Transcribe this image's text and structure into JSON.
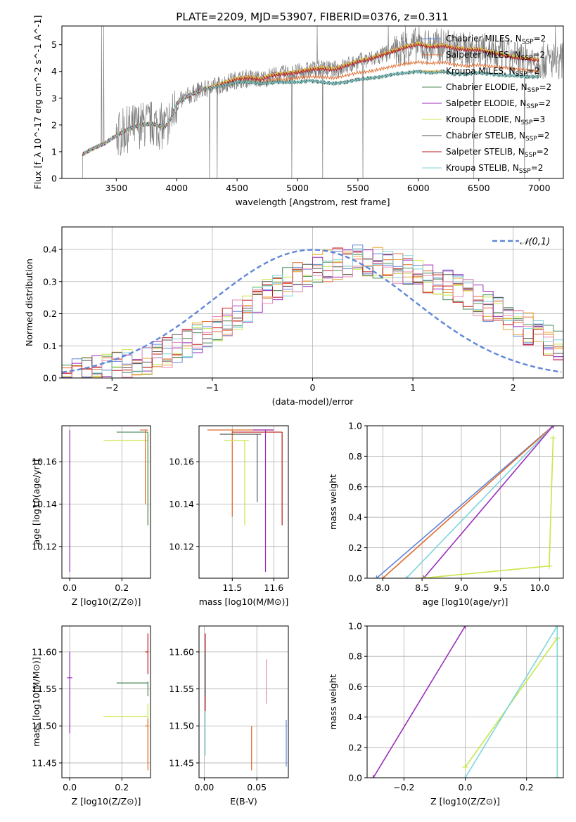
{
  "figure": {
    "title": "PLATE=2209, MJD=53907, FIBERID=0376, z=0.311",
    "series_colors": {
      "Chabrier MILES": "#5f86d8",
      "Salpeter MILES": "#e06a2b",
      "Kroupa MILES": "#e8a830",
      "Chabrier ELODIE": "#4a8a58",
      "Salpeter ELODIE": "#9a2eb8",
      "Kroupa ELODIE": "#c8e64a",
      "Chabrier STELIB": "#555555",
      "Salpeter STELIB": "#c01818",
      "Kroupa STELIB": "#7fd4dc"
    }
  },
  "chart_data": [
    {
      "type": "line",
      "id": "spectrum",
      "title": "PLATE=2209, MJD=53907, FIBERID=0376, z=0.311",
      "xlabel": "wavelength [Angstrom, rest frame]",
      "ylabel": "Flux [f_λ 10^-17 erg cm^-2 s^-1 A^-1]",
      "xlim": [
        3050,
        7200
      ],
      "ylim": [
        0,
        5.7
      ],
      "xticks": [
        3500,
        4000,
        4500,
        5000,
        5500,
        6000,
        6500,
        7000
      ],
      "yticks": [
        0,
        1,
        2,
        3,
        4,
        5
      ],
      "legend_position": "top-right",
      "data_color": "#7f7f7f",
      "model_x": [
        3220,
        3300,
        3400,
        3500,
        3600,
        3700,
        3800,
        3900,
        3960,
        4000,
        4100,
        4200,
        4300,
        4400,
        4500,
        4600,
        4700,
        4800,
        4900,
        5000,
        5100,
        5200,
        5300,
        5400,
        5500,
        5600,
        5700,
        5800,
        5900,
        6000,
        6100,
        6200,
        6300,
        6400,
        6500,
        6600,
        6700,
        6800,
        6900,
        7000
      ],
      "series": [
        {
          "name": "Chabrier MILES, N_SSP=2",
          "values": [
            0.9,
            1.1,
            1.3,
            1.6,
            1.85,
            2.0,
            2.05,
            1.9,
            2.3,
            2.8,
            3.1,
            3.3,
            3.4,
            3.55,
            3.7,
            3.75,
            3.7,
            3.85,
            3.9,
            3.95,
            4.05,
            4.1,
            4.05,
            4.2,
            4.35,
            4.45,
            4.6,
            4.75,
            4.9,
            5.0,
            4.9,
            4.95,
            4.85,
            4.8,
            4.8,
            4.7,
            4.6,
            4.5,
            4.45,
            4.4
          ]
        },
        {
          "name": "Salpeter MILES, N_SSP=2",
          "values": [
            0.9,
            1.1,
            1.3,
            1.6,
            1.85,
            2.0,
            2.05,
            1.9,
            2.3,
            2.8,
            3.1,
            3.3,
            3.4,
            3.5,
            3.6,
            3.65,
            3.6,
            3.7,
            3.7,
            3.75,
            3.8,
            3.8,
            3.75,
            3.85,
            3.95,
            4.0,
            4.1,
            4.2,
            4.3,
            4.35,
            4.3,
            4.35,
            4.25,
            4.2,
            4.25,
            4.2,
            4.15,
            4.1,
            4.05,
            4.0
          ]
        },
        {
          "name": "Kroupa MILES, N_SSP=2",
          "values": [
            0.9,
            1.1,
            1.3,
            1.6,
            1.85,
            2.0,
            2.05,
            1.9,
            2.3,
            2.8,
            3.1,
            3.3,
            3.45,
            3.6,
            3.75,
            3.8,
            3.75,
            3.9,
            3.95,
            4.0,
            4.1,
            4.15,
            4.1,
            4.25,
            4.4,
            4.5,
            4.65,
            4.8,
            4.95,
            5.05,
            4.95,
            5.0,
            4.9,
            4.85,
            4.85,
            4.75,
            4.65,
            4.55,
            4.5,
            4.45
          ]
        },
        {
          "name": "Chabrier ELODIE, N_SSP=2",
          "values": [
            0.9,
            1.1,
            1.3,
            1.6,
            1.85,
            2.0,
            2.05,
            1.9,
            2.3,
            2.8,
            3.1,
            3.3,
            3.4,
            3.5,
            3.6,
            3.6,
            3.55,
            3.6,
            3.6,
            3.6,
            3.65,
            3.6,
            3.55,
            3.6,
            3.7,
            3.75,
            3.8,
            3.9,
            3.95,
            4.0,
            3.95,
            4.0,
            3.9,
            3.9,
            3.95,
            3.9,
            3.85,
            3.85,
            3.8,
            3.8
          ]
        },
        {
          "name": "Salpeter ELODIE, N_SSP=2",
          "values": [
            0.9,
            1.1,
            1.3,
            1.6,
            1.85,
            2.0,
            2.05,
            1.9,
            2.3,
            2.8,
            3.1,
            3.3,
            3.45,
            3.6,
            3.75,
            3.8,
            3.75,
            3.9,
            3.95,
            4.0,
            4.1,
            4.15,
            4.1,
            4.25,
            4.4,
            4.5,
            4.65,
            4.8,
            4.95,
            5.05,
            4.95,
            5.0,
            4.9,
            4.85,
            4.85,
            4.75,
            4.65,
            4.55,
            4.5,
            4.45
          ]
        },
        {
          "name": "Kroupa ELODIE, N_SSP=3",
          "values": [
            0.9,
            1.1,
            1.3,
            1.6,
            1.85,
            2.0,
            2.05,
            1.9,
            2.3,
            2.8,
            3.1,
            3.3,
            3.45,
            3.6,
            3.75,
            3.8,
            3.75,
            3.9,
            3.95,
            4.0,
            4.1,
            4.15,
            4.1,
            4.25,
            4.4,
            4.5,
            4.65,
            4.8,
            4.95,
            5.05,
            4.95,
            5.0,
            4.9,
            4.85,
            4.85,
            4.75,
            4.65,
            4.55,
            4.5,
            4.45
          ]
        },
        {
          "name": "Chabrier STELIB, N_SSP=2",
          "values": [
            0.9,
            1.1,
            1.3,
            1.6,
            1.85,
            2.0,
            2.05,
            1.9,
            2.3,
            2.8,
            3.1,
            3.3,
            3.4,
            3.5,
            3.6,
            3.6,
            3.55,
            3.6,
            3.6,
            3.6,
            3.65,
            3.6,
            3.55,
            3.6,
            3.7,
            3.75,
            3.8,
            3.9,
            3.95,
            4.0,
            3.95,
            4.0,
            3.9,
            3.9,
            3.95,
            3.9,
            3.85,
            3.85,
            3.8,
            3.8
          ]
        },
        {
          "name": "Salpeter STELIB, N_SSP=2",
          "values": [
            0.9,
            1.1,
            1.3,
            1.6,
            1.85,
            2.0,
            2.05,
            1.9,
            2.3,
            2.8,
            3.1,
            3.3,
            3.4,
            3.55,
            3.7,
            3.75,
            3.7,
            3.85,
            3.9,
            3.95,
            4.05,
            4.1,
            4.05,
            4.2,
            4.35,
            4.45,
            4.6,
            4.75,
            4.9,
            5.0,
            4.9,
            4.95,
            4.85,
            4.8,
            4.8,
            4.7,
            4.6,
            4.5,
            4.45,
            4.4
          ]
        },
        {
          "name": "Kroupa STELIB, N_SSP=2",
          "values": [
            0.9,
            1.1,
            1.3,
            1.6,
            1.85,
            2.0,
            2.05,
            1.9,
            2.3,
            2.8,
            3.1,
            3.3,
            3.4,
            3.5,
            3.6,
            3.6,
            3.55,
            3.6,
            3.6,
            3.6,
            3.65,
            3.6,
            3.55,
            3.6,
            3.7,
            3.75,
            3.8,
            3.9,
            3.95,
            4.0,
            3.95,
            4.0,
            3.9,
            3.9,
            3.95,
            3.9,
            3.85,
            3.85,
            3.8,
            3.8
          ]
        }
      ]
    },
    {
      "type": "line",
      "id": "residuals",
      "xlabel": "(data-model)/error",
      "ylabel": "Normed distribution",
      "xlim": [
        -2.5,
        2.5
      ],
      "ylim": [
        0,
        0.47
      ],
      "xticks": [
        -2,
        -1,
        0,
        1,
        2
      ],
      "yticks": [
        0.0,
        0.1,
        0.2,
        0.3,
        0.4
      ],
      "legend_position": "top-right",
      "reference_curve": {
        "name": "𝒩(0,1)",
        "mean": 0,
        "sigma": 1
      },
      "bin_width": 0.1,
      "histogram_envelope": {
        "x": [
          -2.5,
          -2.0,
          -1.5,
          -1.0,
          -0.5,
          0.0,
          0.5,
          1.0,
          1.5,
          2.0,
          2.5
        ],
        "y": [
          0.01,
          0.03,
          0.07,
          0.15,
          0.25,
          0.34,
          0.37,
          0.33,
          0.27,
          0.18,
          0.09
        ]
      }
    },
    {
      "type": "scatter",
      "id": "age-vs-Z",
      "xlabel": "Z [log10(Z/Z⊙)]",
      "ylabel": "age  [log10(age/yr)]",
      "xlim": [
        -0.03,
        0.31
      ],
      "ylim": [
        10.105,
        10.177
      ],
      "xticks": [
        0.0,
        0.2
      ],
      "yticks": [
        10.12,
        10.14,
        10.16
      ],
      "points": [
        {
          "x": 0.0,
          "xerr": 0.0,
          "y": 10.175,
          "yerr_lo": 10.108,
          "yerr_hi": 10.175,
          "color": "#9a2eb8"
        },
        {
          "x": 0.3,
          "xlo": 0.13,
          "xhi": 0.3,
          "y": 10.17,
          "ylo": 10.13,
          "yhi": 10.173,
          "color": "#c8e64a"
        },
        {
          "x": 0.3,
          "xlo": 0.18,
          "xhi": 0.3,
          "y": 10.174,
          "ylo": 10.13,
          "yhi": 10.174,
          "color": "#4a8a58"
        },
        {
          "x": 0.29,
          "xlo": 0.27,
          "xhi": 0.3,
          "y": 10.175,
          "ylo": 10.14,
          "yhi": 10.175,
          "color": "#e06a2b"
        }
      ]
    },
    {
      "type": "scatter",
      "id": "age-vs-mass",
      "xlabel": "mass [log10(M/M⊙)]",
      "ylabel": "",
      "xlim": [
        11.42,
        11.635
      ],
      "ylim": [
        10.105,
        10.177
      ],
      "xticks": [
        11.5,
        11.6
      ],
      "yticks": [
        10.12,
        10.14,
        10.16
      ],
      "points": [
        {
          "xlo": 11.44,
          "xhi": 11.6,
          "y": 10.175,
          "ylo": 10.134,
          "yhi": 10.175,
          "x": 11.5,
          "color": "#e06a2b"
        },
        {
          "xlo": 11.5,
          "xhi": 11.62,
          "y": 10.174,
          "ylo": 10.13,
          "yhi": 10.174,
          "x": 11.62,
          "color": "#c01818"
        },
        {
          "xlo": 11.47,
          "xhi": 11.57,
          "y": 10.173,
          "ylo": 10.141,
          "yhi": 10.173,
          "x": 11.56,
          "color": "#555555"
        },
        {
          "xlo": 11.48,
          "xhi": 11.54,
          "y": 10.17,
          "ylo": 10.13,
          "yhi": 10.17,
          "x": 11.53,
          "color": "#c8e64a"
        },
        {
          "xlo": 11.55,
          "xhi": 11.6,
          "y": 10.175,
          "ylo": 10.108,
          "yhi": 10.175,
          "x": 11.58,
          "color": "#9a2eb8"
        }
      ]
    },
    {
      "type": "line",
      "id": "massweight-vs-age",
      "xlabel": "age  [log10(age/yr)]",
      "ylabel": "mass weight",
      "xlim": [
        7.8,
        10.3
      ],
      "ylim": [
        0,
        1.0
      ],
      "xticks": [
        8.0,
        8.5,
        9.0,
        9.5,
        10.0
      ],
      "yticks": [
        0.0,
        0.2,
        0.4,
        0.6,
        0.8,
        1.0
      ],
      "series": [
        {
          "name": "Chabrier MILES",
          "x": [
            7.92,
            10.17
          ],
          "y": [
            0.0,
            1.0
          ]
        },
        {
          "name": "Salpeter MILES",
          "x": [
            8.0,
            10.17
          ],
          "y": [
            0.0,
            1.0
          ]
        },
        {
          "name": "Kroupa STELIB",
          "x": [
            8.3,
            10.17
          ],
          "y": [
            0.0,
            1.0
          ]
        },
        {
          "name": "Salpeter ELODIE",
          "x": [
            8.52,
            10.17
          ],
          "y": [
            0.0,
            1.0
          ]
        },
        {
          "name": "Kroupa ELODIE",
          "x": [
            8.5,
            10.12,
            10.17,
            10.12
          ],
          "y": [
            0.0,
            0.08,
            0.92,
            0.08
          ]
        }
      ]
    },
    {
      "type": "scatter",
      "id": "mass-vs-Z",
      "xlabel": "Z [log10(Z/Z⊙)]",
      "ylabel": "mass [log10(M/M⊙)]",
      "xlim": [
        -0.03,
        0.31
      ],
      "ylim": [
        11.43,
        11.635
      ],
      "xticks": [
        0.0,
        0.2
      ],
      "yticks": [
        11.45,
        11.5,
        11.55,
        11.6
      ],
      "points": [
        {
          "x": 0.0,
          "xlo": -0.01,
          "xhi": 0.01,
          "y": 11.565,
          "ylo": 11.49,
          "yhi": 11.6,
          "color": "#9a2eb8"
        },
        {
          "x": 0.3,
          "xlo": 0.13,
          "xhi": 0.3,
          "y": 11.513,
          "ylo": 11.45,
          "yhi": 11.53,
          "color": "#c8e64a"
        },
        {
          "x": 0.3,
          "xlo": 0.18,
          "xhi": 0.3,
          "y": 11.558,
          "ylo": 11.54,
          "yhi": 11.56,
          "color": "#4a8a58"
        },
        {
          "x": 0.3,
          "xlo": 0.29,
          "xhi": 0.3,
          "y": 11.6,
          "ylo": 11.57,
          "yhi": 11.625,
          "color": "#c01818"
        },
        {
          "x": 0.3,
          "xlo": 0.29,
          "xhi": 0.3,
          "y": 11.5,
          "ylo": 11.44,
          "yhi": 11.51,
          "color": "#e06a2b"
        }
      ]
    },
    {
      "type": "scatter",
      "id": "mass-vs-EBV",
      "xlabel": "E(B-V)",
      "ylabel": "",
      "xlim": [
        -0.005,
        0.08
      ],
      "ylim": [
        11.43,
        11.635
      ],
      "xticks": [
        0.0,
        0.05
      ],
      "yticks": [
        11.45,
        11.5,
        11.55,
        11.6
      ],
      "points": [
        {
          "x": 0.001,
          "ylo": 11.52,
          "yhi": 11.625,
          "color": "#c01818"
        },
        {
          "x": 0.001,
          "ylo": 11.54,
          "yhi": 11.6,
          "color": "#555555"
        },
        {
          "x": 0.001,
          "ylo": 11.46,
          "yhi": 11.52,
          "color": "#7fd4dc"
        },
        {
          "x": 0.045,
          "ylo": 11.44,
          "yhi": 11.5,
          "color": "#e06a2b"
        },
        {
          "x": 0.059,
          "ylo": 11.53,
          "yhi": 11.59,
          "color": "#e88ab8"
        },
        {
          "x": 0.078,
          "ylo": 11.445,
          "yhi": 11.508,
          "color": "#5f86d8"
        }
      ]
    },
    {
      "type": "line",
      "id": "massweight-vs-Z",
      "xlabel": "Z [log10(Z/Z⊙)]",
      "ylabel": "mass weight",
      "xlim": [
        -0.32,
        0.32
      ],
      "ylim": [
        0,
        1.0
      ],
      "xticks": [
        -0.2,
        0.0,
        0.2
      ],
      "yticks": [
        0.0,
        0.2,
        0.4,
        0.6,
        0.8,
        1.0
      ],
      "series": [
        {
          "name": "Salpeter ELODIE",
          "x": [
            -0.3,
            0.0
          ],
          "y": [
            0.0,
            1.0
          ]
        },
        {
          "name": "Kroupa ELODIE",
          "x": [
            0.0,
            0.3,
            0.3
          ],
          "y": [
            0.07,
            0.92,
            0.0
          ]
        },
        {
          "name": "Kroupa STELIB",
          "x": [
            0.0,
            0.3,
            0.3
          ],
          "y": [
            0.0,
            1.0,
            0.0
          ]
        }
      ]
    }
  ]
}
